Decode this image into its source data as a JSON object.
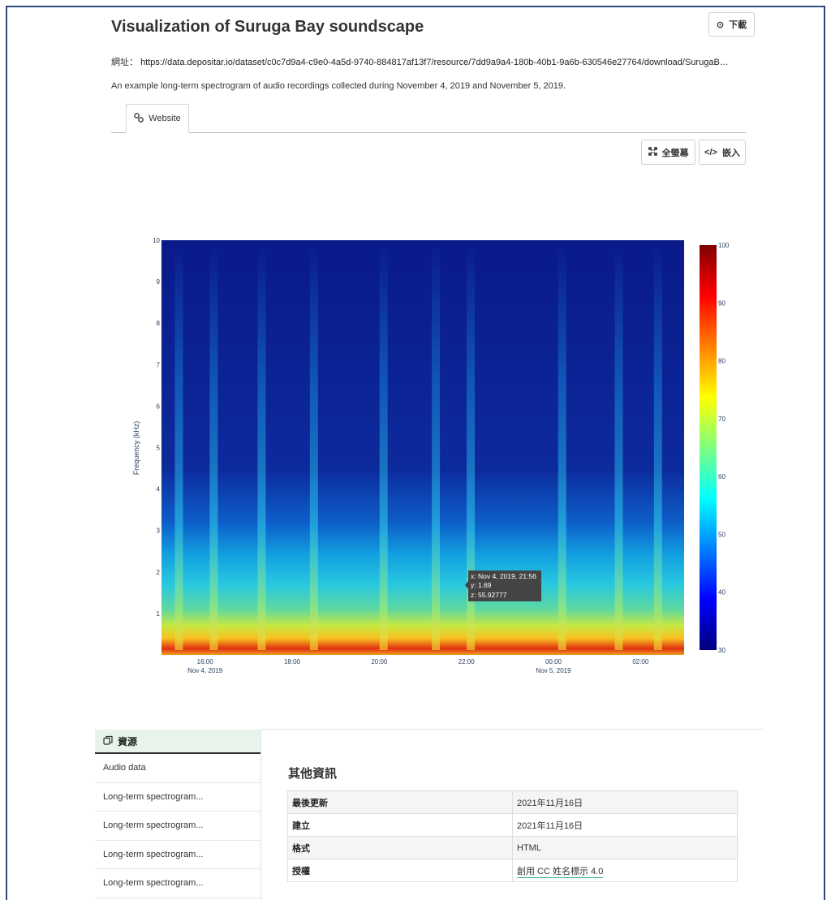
{
  "page": {
    "title": "Visualization of Suruga Bay soundscape",
    "download_label": "下載",
    "url_label": "網址：",
    "url": "https://data.depositar.io/dataset/c0c7d9a4-c9e0-4a5d-9740-884817af13f7/resource/7dd9a9a4-180b-40b1-9a6b-630546e27764/download/SurugaB…",
    "description": "An example long-term spectrogram of audio recordings collected during November 4, 2019 and November 5, 2019.",
    "tab_label": "Website",
    "fullscreen_label": "全螢幕",
    "embed_label": "嵌入"
  },
  "icons": {
    "download": "download-icon",
    "link": "link-icon",
    "fullscreen": "fullscreen-icon",
    "embed": "code-icon",
    "resources": "copy-icon"
  },
  "chart_data": {
    "type": "heatmap",
    "ylabel": "Frequency (kHz)",
    "yticks": [
      "1",
      "2",
      "3",
      "4",
      "5",
      "6",
      "7",
      "8",
      "9",
      "10"
    ],
    "ylim": [
      0,
      10
    ],
    "xticks": [
      {
        "time": "16:00",
        "date": "Nov 4, 2019"
      },
      {
        "time": "18:00",
        "date": ""
      },
      {
        "time": "20:00",
        "date": ""
      },
      {
        "time": "22:00",
        "date": ""
      },
      {
        "time": "00:00",
        "date": "Nov 5, 2019"
      },
      {
        "time": "02:00",
        "date": ""
      }
    ],
    "xrange": [
      "Nov 4, 2019 15:00",
      "Nov 5, 2019 03:00"
    ],
    "colorscale": "jet",
    "zlim": [
      30,
      100
    ],
    "colorbar_ticks": [
      "100",
      "90",
      "80",
      "70",
      "60",
      "50",
      "40",
      "30"
    ],
    "bright_bands_hours": [
      15.4,
      16.2,
      17.3,
      18.5,
      20.1,
      21.3,
      22.1,
      24.2,
      25.5,
      26.4
    ],
    "hover": {
      "x": "x: Nov 4, 2019, 21:56",
      "y": "y: 1.69",
      "z": "z: 55.92777"
    }
  },
  "resources": {
    "heading": "資源",
    "items": [
      "Audio data",
      "Long-term spectrogram...",
      "Long-term spectrogram...",
      "Long-term spectrogram...",
      "Long-term spectrogram..."
    ]
  },
  "info": {
    "heading": "其他資訊",
    "rows": [
      {
        "key": "最後更新",
        "value": "2021年11月16日"
      },
      {
        "key": "建立",
        "value": "2021年11月16日"
      },
      {
        "key": "格式",
        "value": "HTML"
      },
      {
        "key": "授權",
        "value": "創用 CC 姓名標示 4.0"
      }
    ]
  }
}
